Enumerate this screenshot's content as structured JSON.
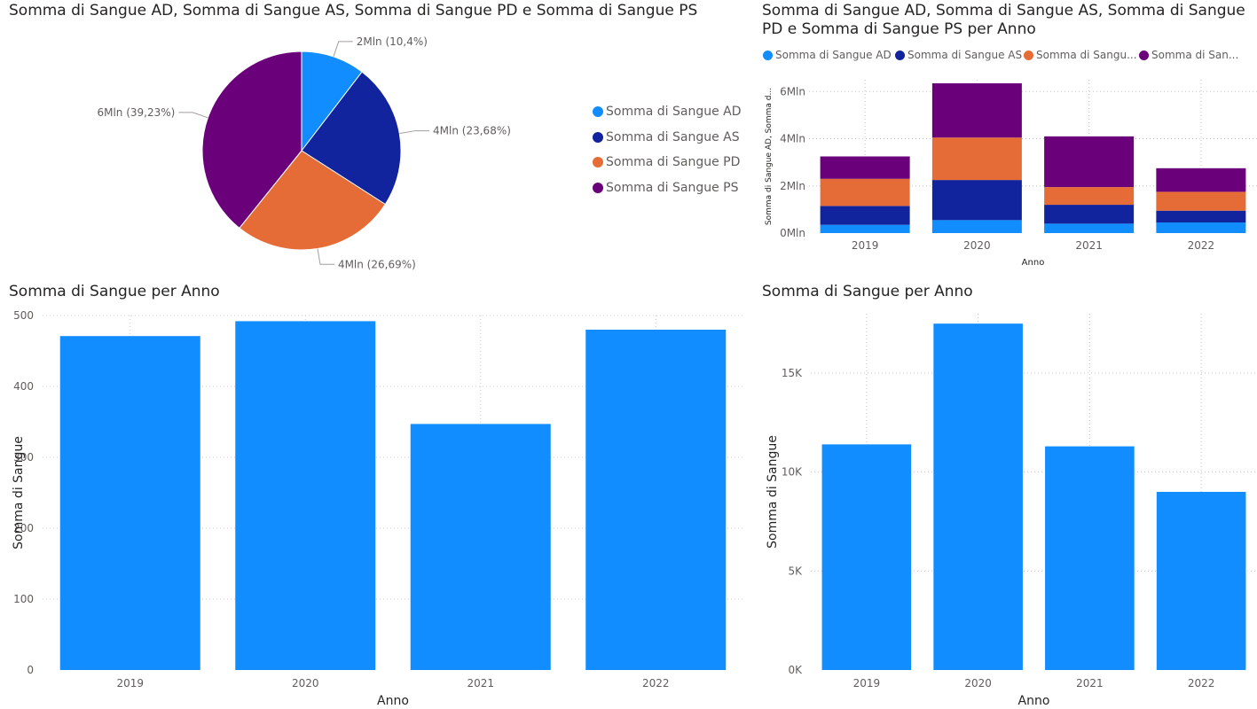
{
  "colors": {
    "sangue_ad": "#118DFF",
    "sangue_as": "#12239E",
    "sangue_pd": "#E66C37",
    "sangue_ps": "#6B007B",
    "bar": "#118DFF",
    "gridline": "#C8C6C4",
    "axis_text": "#605E5C",
    "title_text": "#252423"
  },
  "chart_data": [
    {
      "type": "pie",
      "title": "Somma di Sangue AD, Somma di Sangue AS, Somma di Sangue PD e Somma di Sangue PS",
      "legend_position": "right",
      "slices": [
        {
          "name": "Somma di Sangue AD",
          "value": 10.4,
          "label": "2Mln (10,4%)",
          "color": "#118DFF"
        },
        {
          "name": "Somma di Sangue AS",
          "value": 23.68,
          "label": "4Mln (23,68%)",
          "color": "#12239E"
        },
        {
          "name": "Somma di Sangue PD",
          "value": 26.69,
          "label": "4Mln (26,69%)",
          "color": "#E66C37"
        },
        {
          "name": "Somma di Sangue PS",
          "value": 39.23,
          "label": "6Mln (39,23%)",
          "color": "#6B007B"
        }
      ]
    },
    {
      "type": "bar",
      "stacked": true,
      "title": "Somma di Sangue AD, Somma di Sangue AS, Somma di Sangue PD e Somma di Sangue PS per Anno",
      "xlabel": "Anno",
      "ylabel": "Somma di Sangue AD, Somma d...",
      "legend_position": "top",
      "legend_labels": [
        "Somma di Sangue AD",
        "Somma di Sangue AS",
        "Somma di Sangu...",
        "Somma di San..."
      ],
      "categories": [
        "2019",
        "2020",
        "2021",
        "2022"
      ],
      "y_ticks": [
        0,
        2,
        4,
        6
      ],
      "y_tick_labels": [
        "0Mln",
        "2Mln",
        "4Mln",
        "6Mln"
      ],
      "ylim": [
        0,
        6.5
      ],
      "series": [
        {
          "name": "Somma di Sangue AD",
          "values": [
            0.35,
            0.55,
            0.4,
            0.45
          ],
          "color": "#118DFF"
        },
        {
          "name": "Somma di Sangue AS",
          "values": [
            0.8,
            1.7,
            0.8,
            0.5
          ],
          "color": "#12239E"
        },
        {
          "name": "Somma di Sangue PD",
          "values": [
            1.15,
            1.8,
            0.75,
            0.8
          ],
          "color": "#E66C37"
        },
        {
          "name": "Somma di Sangue PS",
          "values": [
            0.95,
            2.3,
            2.15,
            1.0
          ],
          "color": "#6B007B"
        }
      ]
    },
    {
      "type": "bar",
      "title": "Somma di Sangue per Anno",
      "xlabel": "Anno",
      "ylabel": "Somma di Sangue",
      "categories": [
        "2019",
        "2020",
        "2021",
        "2022"
      ],
      "values": [
        471,
        492,
        347,
        480
      ],
      "y_ticks": [
        0,
        100,
        200,
        300,
        400,
        500
      ],
      "y_tick_labels": [
        "0",
        "100",
        "200",
        "300",
        "400",
        "500"
      ],
      "ylim": [
        0,
        500
      ],
      "color": "#118DFF"
    },
    {
      "type": "bar",
      "title": "Somma di Sangue per Anno",
      "xlabel": "Anno",
      "ylabel": "Somma di Sangue",
      "categories": [
        "2019",
        "2020",
        "2021",
        "2022"
      ],
      "values": [
        11400,
        17500,
        11300,
        9000
      ],
      "y_ticks": [
        0,
        5000,
        10000,
        15000
      ],
      "y_tick_labels": [
        "0K",
        "5K",
        "10K",
        "15K"
      ],
      "ylim": [
        0,
        18000
      ],
      "color": "#118DFF"
    }
  ]
}
